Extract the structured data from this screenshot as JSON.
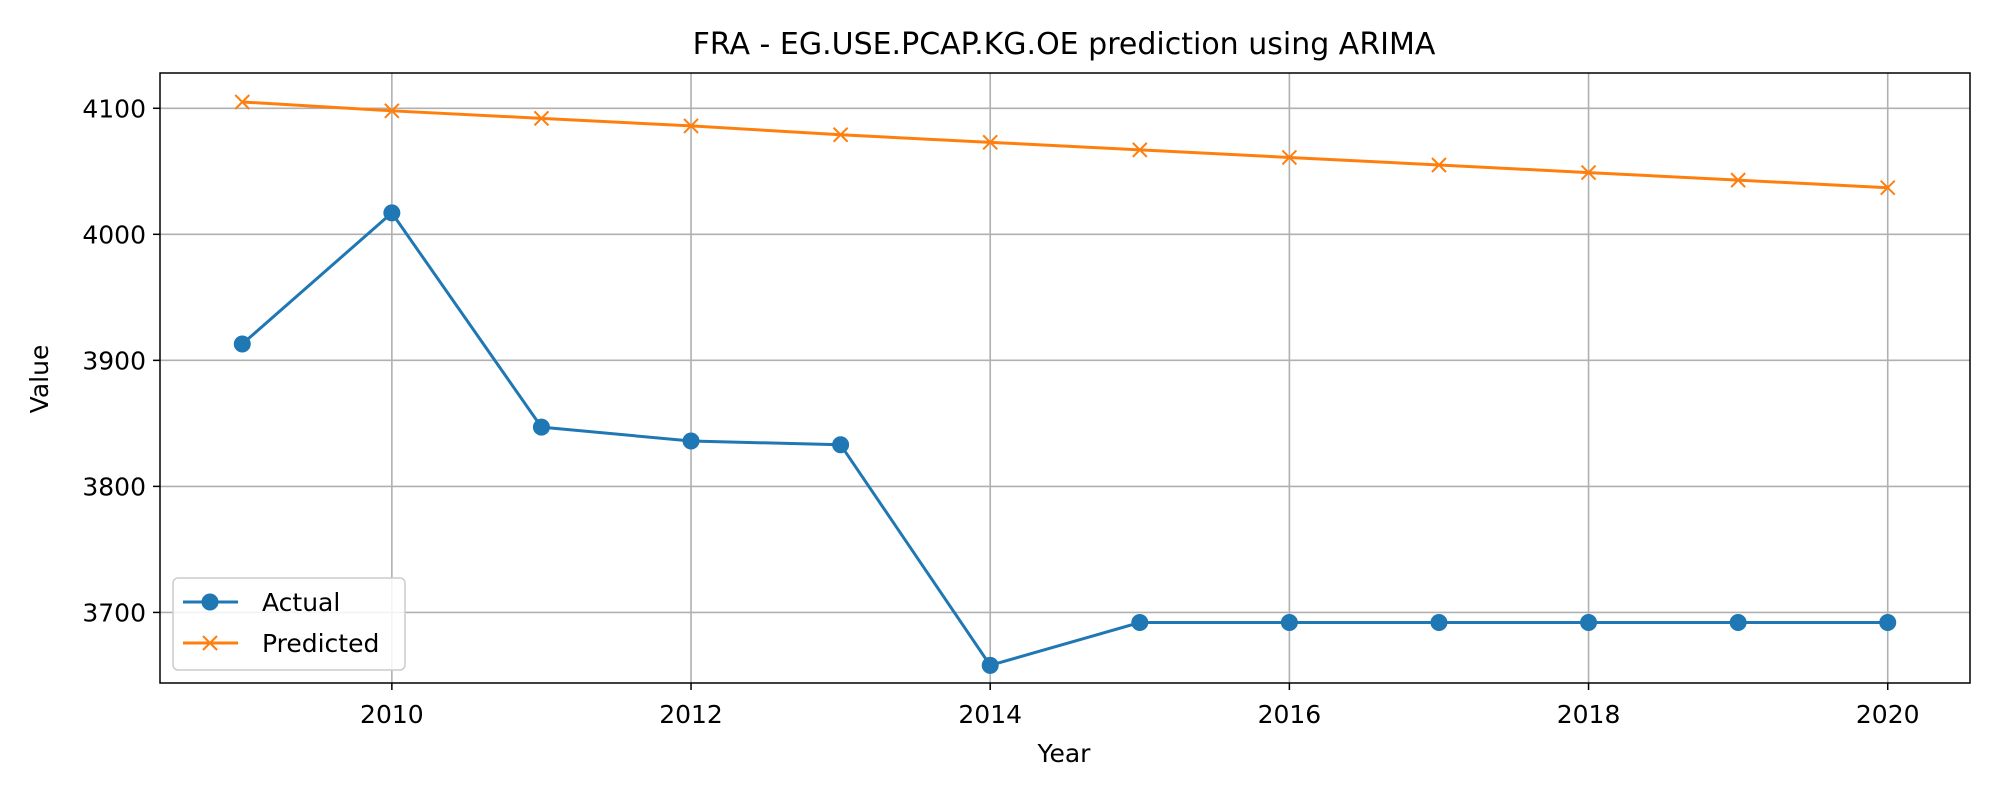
{
  "chart_data": {
    "type": "line",
    "title": "FRA - EG.USE.PCAP.KG.OE prediction using ARIMA",
    "xlabel": "Year",
    "ylabel": "Value",
    "x": [
      2009,
      2010,
      2011,
      2012,
      2013,
      2014,
      2015,
      2016,
      2017,
      2018,
      2019,
      2020
    ],
    "xlim": [
      2008.45,
      2020.55
    ],
    "ylim": [
      3644,
      4128
    ],
    "xticks": [
      2010,
      2012,
      2014,
      2016,
      2018,
      2020
    ],
    "yticks": [
      3700,
      3800,
      3900,
      4000,
      4100
    ],
    "grid": true,
    "legend_position": "lower-left",
    "series": [
      {
        "name": "Actual",
        "color": "#1f77b4",
        "marker": "circle",
        "values": [
          3913,
          4017,
          3847,
          3836,
          3833,
          3658,
          3692,
          3692,
          3692,
          3692,
          3692,
          3692
        ]
      },
      {
        "name": "Predicted",
        "color": "#ff7f0e",
        "marker": "x",
        "values": [
          4105,
          4098,
          4092,
          4086,
          4079,
          4073,
          4067,
          4061,
          4055,
          4049,
          4043,
          4037
        ]
      }
    ]
  }
}
